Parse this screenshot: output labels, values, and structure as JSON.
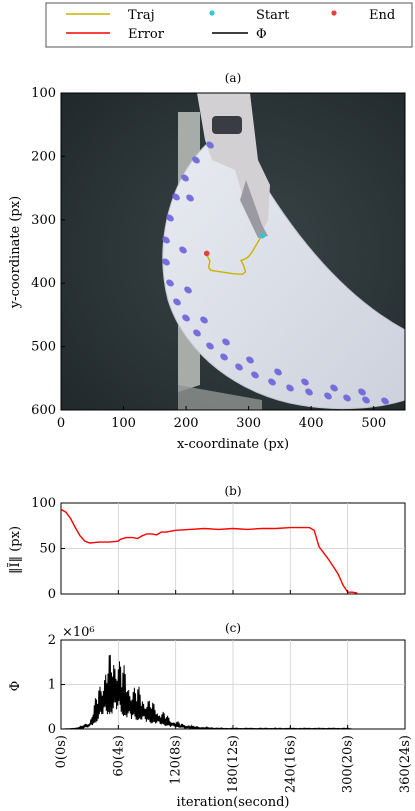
{
  "legend": {
    "items": [
      {
        "label": "Traj",
        "kind": "line",
        "color": "#c8b400"
      },
      {
        "label": "Start",
        "kind": "marker",
        "color": "#33c4d8"
      },
      {
        "label": "End",
        "kind": "marker",
        "color": "#e8403a"
      },
      {
        "label": "Error",
        "kind": "line",
        "color": "#ff0000"
      },
      {
        "label": "Φ",
        "kind": "line",
        "color": "#000000"
      }
    ]
  },
  "captions": {
    "a": "(a)",
    "b": "(b)",
    "c": "(c)"
  },
  "chart_data": [
    {
      "id": "a",
      "type": "scatter",
      "background": "camera frame of robot tool over a white half-disc with blue spots",
      "xlabel": "x-coordinate (px)",
      "ylabel": "y-coordinate (px)",
      "xlim": [
        0,
        550
      ],
      "ylim": [
        100,
        600
      ],
      "y_inverted": true,
      "xticks": [
        0,
        100,
        200,
        300,
        400,
        500
      ],
      "yticks": [
        100,
        200,
        300,
        400,
        500,
        600
      ],
      "series": [
        {
          "name": "Traj",
          "color": "#c8b400",
          "points": [
            [
              233,
              355
            ],
            [
              238,
              365
            ],
            [
              236,
              375
            ],
            [
              240,
              380
            ],
            [
              255,
              382
            ],
            [
              275,
              385
            ],
            [
              290,
              386
            ],
            [
              295,
              382
            ],
            [
              292,
              372
            ],
            [
              288,
              364
            ],
            [
              294,
              362
            ],
            [
              300,
              358
            ],
            [
              306,
              350
            ],
            [
              312,
              340
            ],
            [
              318,
              330
            ],
            [
              322,
              325
            ]
          ]
        },
        {
          "name": "Start",
          "color": "#33c4d8",
          "points": [
            [
              322,
              325
            ]
          ]
        },
        {
          "name": "End",
          "color": "#e8403a",
          "points": [
            [
              233,
              353
            ]
          ]
        }
      ]
    },
    {
      "id": "b",
      "type": "line",
      "ylabel": "‖Ĩ‖ (px)",
      "xlim": [
        0,
        360
      ],
      "ylim": [
        0,
        100
      ],
      "yticks": [
        0,
        50,
        100
      ],
      "grid": true,
      "series": [
        {
          "name": "Error",
          "color": "#ff0000",
          "x": [
            0,
            5,
            10,
            15,
            20,
            25,
            30,
            40,
            50,
            60,
            62,
            68,
            75,
            80,
            85,
            90,
            95,
            100,
            105,
            110,
            120,
            135,
            150,
            165,
            180,
            195,
            210,
            225,
            240,
            250,
            260,
            265,
            270,
            280,
            290,
            295,
            300,
            305,
            310
          ],
          "y": [
            93,
            90,
            83,
            73,
            64,
            58,
            56,
            57,
            57,
            58,
            60,
            62,
            62,
            61,
            64,
            66,
            66,
            65,
            68,
            68,
            70,
            71,
            72,
            71,
            72,
            71,
            72,
            72,
            73,
            73,
            73,
            70,
            52,
            38,
            22,
            10,
            2,
            2,
            1
          ]
        }
      ]
    },
    {
      "id": "c",
      "type": "line",
      "ylabel": "Φ",
      "scale_label": "×10⁶",
      "xlabel": "iteration(second)",
      "xlim": [
        0,
        360
      ],
      "ylim": [
        0,
        2
      ],
      "yticks": [
        0,
        1,
        2
      ],
      "xtick_labels": [
        "0(0s)",
        "60(4s)",
        "120(8s)",
        "180(12s)",
        "240(16s)",
        "300(20s)",
        "360(24s)"
      ],
      "grid": true,
      "series": [
        {
          "name": "Φ",
          "color": "#000000",
          "envelope": {
            "x": [
              0,
              10,
              20,
              30,
              35,
              40,
              45,
              50,
              55,
              60,
              65,
              70,
              75,
              80,
              85,
              90,
              95,
              100,
              105,
              110,
              115,
              120,
              125,
              130,
              140,
              150,
              160,
              170,
              180,
              200,
              220,
              240,
              260,
              280,
              300,
              305
            ],
            "y": [
              0,
              0.01,
              0.05,
              0.2,
              0.6,
              1.1,
              1.5,
              1.7,
              1.8,
              2.0,
              1.5,
              1.2,
              1.1,
              1.0,
              0.9,
              0.75,
              0.65,
              0.55,
              0.45,
              0.35,
              0.25,
              0.2,
              0.15,
              0.1,
              0.06,
              0.04,
              0.03,
              0.02,
              0.02,
              0.02,
              0.02,
              0.02,
              0.02,
              0.02,
              0.02,
              0
            ]
          }
        }
      ]
    }
  ]
}
